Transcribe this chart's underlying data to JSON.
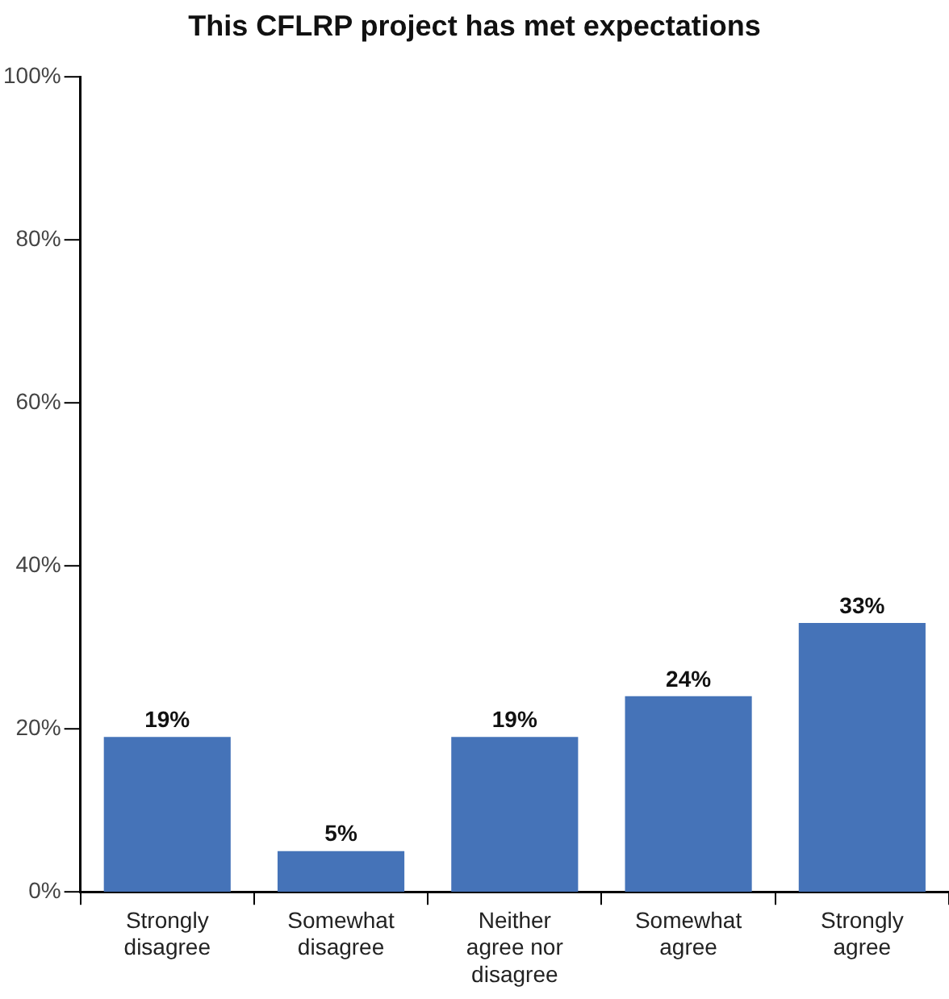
{
  "chart_data": {
    "type": "bar",
    "title": "This CFLRP project has met expectations",
    "categories": [
      "Strongly\ndisagree",
      "Somewhat\ndisagree",
      "Neither\nagree nor\ndisagree",
      "Somewhat\nagree",
      "Strongly\nagree"
    ],
    "values": [
      19,
      5,
      19,
      24,
      33
    ],
    "color": "#4573b8",
    "value_labels": [
      "19%",
      "5%",
      "19%",
      "24%",
      "33%"
    ],
    "ylim": [
      0,
      100
    ],
    "yticks": [
      {
        "value": 0,
        "label": "0%"
      },
      {
        "value": 20,
        "label": "20%"
      },
      {
        "value": 40,
        "label": "40%"
      },
      {
        "value": 60,
        "label": "60%"
      },
      {
        "value": 80,
        "label": "80%"
      },
      {
        "value": 100,
        "label": "100%"
      }
    ],
    "legend": false
  }
}
